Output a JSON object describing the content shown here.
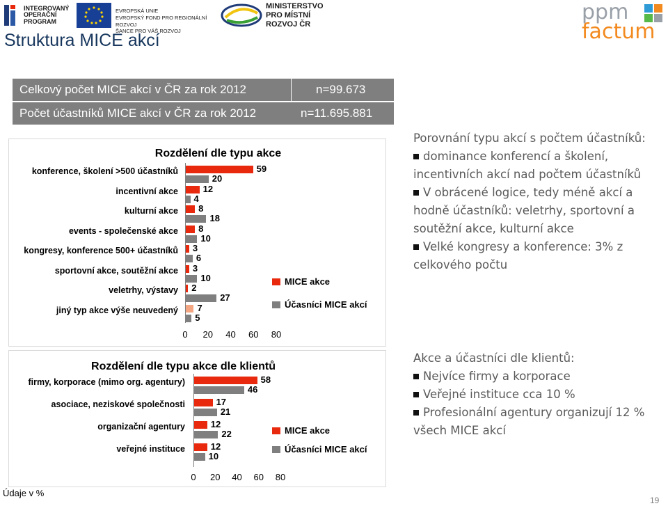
{
  "logos": {
    "iop": [
      "INTEGROVANÝ",
      "OPERAČNÍ",
      "PROGRAM"
    ],
    "eu": [
      "EVROPSKÁ UNIE",
      "EVROPSKÝ FOND PRO REGIONÁLNÍ ROZVOJ",
      "ŠANCE PRO VÁŠ ROZVOJ"
    ],
    "mmr": [
      "MINISTERSTVO",
      "PRO MÍSTNÍ",
      "ROZVOJ ČR"
    ],
    "ppm_top": "ppm",
    "ppm_bottom": "factum"
  },
  "page_title": "Struktura MICE akcí",
  "stats": [
    {
      "label": "Celkový počet MICE akcí v ČR za rok 2012",
      "value": "n=99.673"
    },
    {
      "label": "Počet účastníků MICE akcí  v ČR  za rok 2012",
      "value": "n=11.695.881"
    }
  ],
  "colors": {
    "mice": "#e8290e",
    "participants": "#7f7f7f",
    "participants_last": "#f4a582"
  },
  "chart_data": [
    {
      "type": "bar",
      "title": "Rozdělení dle typu akce",
      "categories": [
        "konference, školení  >500 účastníků",
        "incentivní akce",
        "kulturní akce",
        "events - společenské akce",
        "kongresy, konference 500+ účastníků",
        "sportovní akce, soutěžní akce",
        "veletrhy, výstavy",
        "jiný typ akce výše neuvedený"
      ],
      "series": [
        {
          "name": "MICE akce",
          "values": [
            59,
            12,
            8,
            8,
            3,
            3,
            2,
            7
          ]
        },
        {
          "name": "Účasníci MICE akcí",
          "values": [
            20,
            4,
            18,
            10,
            6,
            10,
            27,
            5
          ]
        }
      ],
      "xticks": [
        "0",
        "20",
        "40",
        "60",
        "80"
      ],
      "xlim": [
        0,
        80
      ]
    },
    {
      "type": "bar",
      "title": "Rozdělení dle typu akce dle klientů",
      "categories": [
        "firmy, korporace (mimo org. agentury)",
        "asociace, neziskové společnosti",
        "organizační agentury",
        "veřejné instituce"
      ],
      "series": [
        {
          "name": "MICE akce",
          "values": [
            58,
            17,
            12,
            12
          ]
        },
        {
          "name": "Účasníci MICE akcí",
          "values": [
            46,
            21,
            22,
            10
          ]
        }
      ],
      "xticks": [
        "0",
        "20",
        "40",
        "60",
        "80"
      ],
      "xlim": [
        0,
        80
      ]
    }
  ],
  "side1": {
    "heading": "Porovnání typu akcí s počtem účastníků:",
    "bullets": [
      "dominance konferencí a školení, incentivních akcí nad počtem účastníků",
      "V obrácené logice, tedy méně akcí a hodně účastníků: veletrhy, sportovní a soutěžní akce, kulturní akce",
      "Velké kongresy a konference: 3% z celkového počtu"
    ]
  },
  "side2": {
    "heading": "Akce a účastníci dle klientů:",
    "bullets": [
      "Nejvíce firmy a korporace",
      "Veřejné instituce cca 10 %",
      "Profesionální agentury organizují 12 % všech MICE akcí"
    ]
  },
  "footer_note": "Údaje v %",
  "page_number": "19"
}
